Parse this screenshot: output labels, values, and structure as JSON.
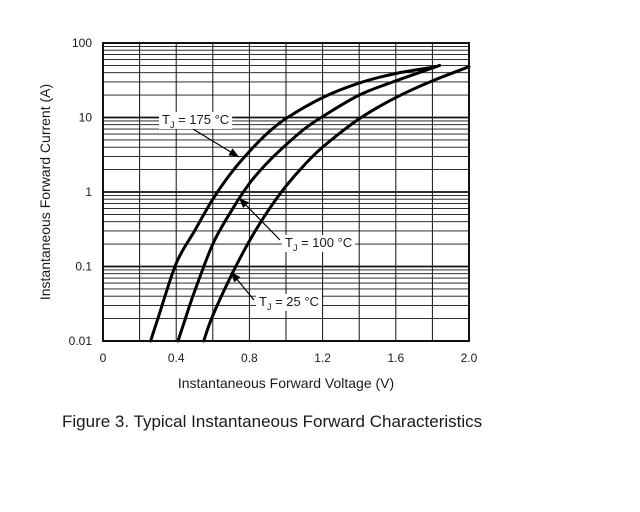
{
  "caption": "Figure 3. Typical Instantaneous Forward Characteristics",
  "chart_data": {
    "type": "line",
    "xlabel": "Instantaneous Forward Voltage (V)",
    "ylabel": "Instantaneous Forward Current (A)",
    "x_scale": "linear",
    "y_scale": "log",
    "xlim": [
      0,
      2.0
    ],
    "ylim": [
      0.01,
      100
    ],
    "x_tick_labels": [
      "0",
      "0.4",
      "0.8",
      "1.2",
      "1.6",
      "2.0"
    ],
    "x_tick_values": [
      0,
      0.4,
      0.8,
      1.2,
      1.6,
      2.0
    ],
    "y_tick_labels": [
      "100",
      "10",
      "1",
      "0.1",
      "0.01"
    ],
    "y_tick_values": [
      100,
      10,
      1,
      0.1,
      0.01
    ],
    "grid": "on",
    "series": [
      {
        "name": "TJ = 175 °C",
        "annotation": {
          "main": "T",
          "sub": "J",
          "rest": " = 175 °C"
        },
        "x": [
          0.26,
          0.3,
          0.4,
          0.5,
          0.6,
          0.7,
          0.8,
          0.9,
          1.0,
          1.2,
          1.4,
          1.6,
          1.8
        ],
        "y": [
          0.01,
          0.02,
          0.11,
          0.3,
          0.8,
          1.8,
          3.5,
          6.2,
          9.7,
          18.5,
          29,
          39,
          47
        ]
      },
      {
        "name": "TJ = 100 °C",
        "annotation": {
          "main": "T",
          "sub": "J",
          "rest": " = 100 °C"
        },
        "x": [
          0.41,
          0.45,
          0.5,
          0.6,
          0.7,
          0.8,
          0.9,
          1.0,
          1.1,
          1.2,
          1.4,
          1.6,
          1.84
        ],
        "y": [
          0.01,
          0.02,
          0.046,
          0.2,
          0.55,
          1.3,
          2.5,
          4.3,
          7.0,
          10.3,
          20,
          31,
          50
        ]
      },
      {
        "name": "TJ = 25 °C",
        "annotation": {
          "main": "T",
          "sub": "J",
          "rest": " = 25 °C"
        },
        "x": [
          0.55,
          0.6,
          0.7,
          0.8,
          0.9,
          1.0,
          1.1,
          1.2,
          1.4,
          1.6,
          1.8,
          2.0
        ],
        "y": [
          0.01,
          0.022,
          0.075,
          0.22,
          0.55,
          1.2,
          2.3,
          4.0,
          9.6,
          18.5,
          31,
          48
        ]
      }
    ]
  }
}
